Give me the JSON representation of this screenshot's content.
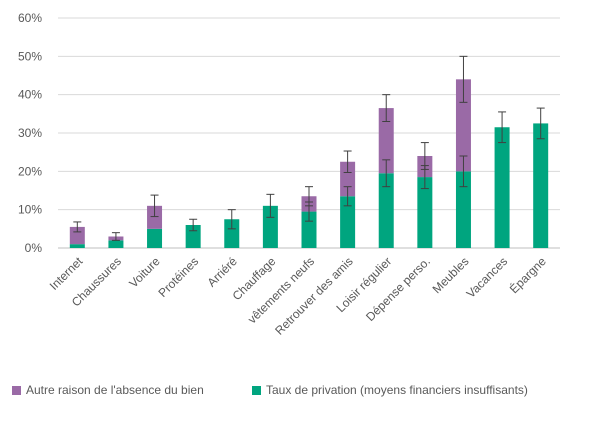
{
  "chart_data": {
    "type": "bar",
    "stacked": true,
    "categories": [
      "Internet",
      "Chaussures",
      "Voiture",
      "Protéines",
      "Arriéré",
      "Chauffage",
      "vêtements neufs",
      "Retrouver des amis",
      "Loisir régulier",
      "Dépense perso.",
      "Meubles",
      "Vacances",
      "Épargne"
    ],
    "series": [
      {
        "name": "Taux de privation (moyens financiers insuffisants)",
        "color": "#00a57f",
        "values": [
          1.0,
          2.0,
          5.0,
          6.0,
          7.5,
          11.0,
          9.5,
          13.5,
          19.5,
          18.5,
          20.0,
          31.5,
          32.5
        ],
        "error": [
          null,
          null,
          null,
          1.5,
          2.5,
          3.0,
          2.5,
          2.5,
          3.5,
          3.0,
          4.0,
          4.0,
          4.0
        ]
      },
      {
        "name": "Autre raison de l'absence du bien",
        "color": "#9a6aa6",
        "values": [
          4.5,
          1.0,
          6.0,
          0,
          0,
          0,
          4.0,
          9.0,
          17.0,
          5.5,
          24.0,
          0,
          0
        ],
        "error": [
          1.3,
          1.0,
          2.8,
          null,
          null,
          null,
          2.5,
          2.8,
          3.5,
          3.5,
          6.0,
          null,
          null
        ]
      }
    ],
    "yticks": [
      "0%",
      "10%",
      "20%",
      "30%",
      "40%",
      "50%",
      "60%"
    ],
    "ylim": [
      0,
      60
    ],
    "grid": true,
    "legend_position": "bottom",
    "title": "",
    "xlabel": "",
    "ylabel": ""
  },
  "legend": [
    {
      "label": "Autre raison de l'absence du bien",
      "color": "#9a6aa6"
    },
    {
      "label": "Taux de privation (moyens financiers insuffisants)",
      "color": "#00a57f"
    }
  ]
}
